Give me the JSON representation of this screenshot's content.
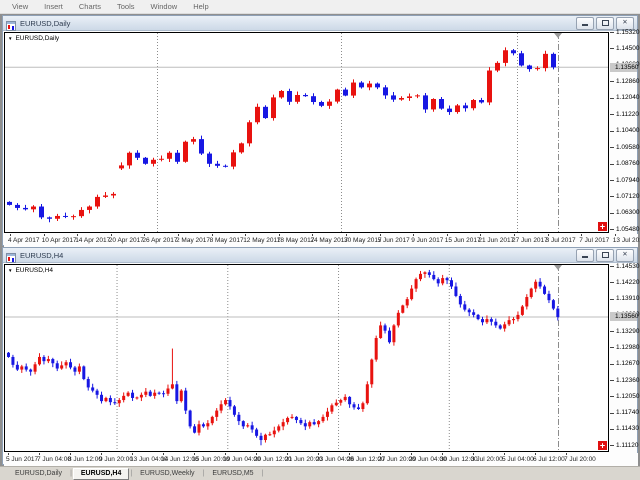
{
  "app": {
    "menu": [
      "View",
      "Insert",
      "Charts",
      "Tools",
      "Window",
      "Help"
    ]
  },
  "icons": {
    "window_icon": "candlestick-chart-icon",
    "close_glyph": "✕",
    "dropdown_glyph": "▼",
    "corner_marker_glyph": "+"
  },
  "windows": [
    {
      "title": "EURUSD,Daily",
      "symbol_label": "EURUSD,Daily"
    },
    {
      "title": "EURUSD,H4",
      "symbol_label": "EURUSD,H4"
    }
  ],
  "tabs": [
    {
      "label": "EURUSD,Daily",
      "active": false
    },
    {
      "label": "EURUSD,H4",
      "active": true
    },
    {
      "label": "EURUSD,Weekly",
      "active": false
    },
    {
      "label": "EURUSD,M5",
      "active": false
    }
  ],
  "chart_data": [
    {
      "type": "candlestick",
      "symbol": "EURUSD",
      "timeframe": "Daily",
      "title": "EURUSD,Daily",
      "background": "#ffffff",
      "bull_color": "#e8120f",
      "bear_color": "#1717e3",
      "bid": 1.1356,
      "bid_label": "1.13560",
      "ylim": [
        1.053,
        1.1532
      ],
      "open_rule": "previous_close",
      "closes": [
        1.067,
        1.0655,
        1.0648,
        1.0662,
        1.0608,
        1.0601,
        1.0615,
        1.061,
        1.0614,
        1.0645,
        1.0662,
        1.071,
        1.0717,
        1.0725,
        1.0867,
        1.093,
        1.0905,
        1.0875,
        1.0895,
        1.09,
        1.093,
        1.0885,
        1.0985,
        1.0998,
        1.0926,
        1.0875,
        1.0865,
        1.0861,
        1.0932,
        1.0977,
        1.1082,
        1.1159,
        1.1103,
        1.1206,
        1.1238,
        1.1184,
        1.1218,
        1.1212,
        1.1183,
        1.1164,
        1.1185,
        1.1245,
        1.1215,
        1.128,
        1.1256,
        1.1275,
        1.1256,
        1.1216,
        1.1195,
        1.1203,
        1.1211,
        1.1216,
        1.1146,
        1.1198,
        1.115,
        1.1133,
        1.1166,
        1.1152,
        1.1193,
        1.1181,
        1.134,
        1.1378,
        1.1441,
        1.1426,
        1.1365,
        1.1347,
        1.1352,
        1.1423,
        1.1356
      ],
      "overrides": {
        "0": {
          "open": 1.0685
        },
        "14": {
          "open": 1.0852
        }
      },
      "price_ticks": [
        "1.15320",
        "1.14500",
        "1.13680",
        "1.12860",
        "1.12040",
        "1.11220",
        "1.10400",
        "1.09580",
        "1.08760",
        "1.07940",
        "1.07120",
        "1.06300",
        "1.05480"
      ],
      "time_ticks": [
        "4 Apr 2017",
        "10 Apr 2017",
        "14 Apr 2017",
        "20 Apr 2017",
        "26 Apr 2017",
        "2 May 2017",
        "8 May 2017",
        "12 May 2017",
        "18 May 2017",
        "24 May 2017",
        "30 May 2017",
        "5 Jun 2017",
        "9 Jun 2017",
        "15 Jun 2017",
        "21 Jun 2017",
        "27 Jun 2017",
        "3 Jul 2017",
        "7 Jul 2017",
        "13 Jul 2017"
      ],
      "separator_bars": [
        19,
        42,
        64
      ],
      "grid": "period-separators-only"
    },
    {
      "type": "candlestick",
      "symbol": "EURUSD",
      "timeframe": "H4",
      "title": "EURUSD,H4",
      "background": "#ffffff",
      "bull_color": "#e8120f",
      "bear_color": "#1717e3",
      "bid": 1.1356,
      "bid_label": "1.13560",
      "ylim": [
        1.1099,
        1.1457
      ],
      "open_rule": "previous_close",
      "closes": [
        1.128,
        1.1265,
        1.1256,
        1.1262,
        1.1256,
        1.1252,
        1.1266,
        1.128,
        1.1272,
        1.1276,
        1.1268,
        1.1258,
        1.1264,
        1.127,
        1.126,
        1.1252,
        1.1262,
        1.1238,
        1.1222,
        1.1216,
        1.1208,
        1.1196,
        1.1202,
        1.1194,
        1.1192,
        1.1198,
        1.1206,
        1.1212,
        1.1202,
        1.1203,
        1.1208,
        1.1214,
        1.1206,
        1.1212,
        1.1211,
        1.121,
        1.122,
        1.1228,
        1.1196,
        1.1216,
        1.1178,
        1.1148,
        1.1136,
        1.1152,
        1.1148,
        1.1154,
        1.1166,
        1.1178,
        1.119,
        1.1198,
        1.1186,
        1.117,
        1.1158,
        1.1148,
        1.115,
        1.1142,
        1.113,
        1.1122,
        1.1132,
        1.1133,
        1.114,
        1.1148,
        1.1156,
        1.1164,
        1.1166,
        1.116,
        1.1154,
        1.1148,
        1.1156,
        1.1152,
        1.1158,
        1.1166,
        1.1176,
        1.1188,
        1.1193,
        1.1198,
        1.1204,
        1.119,
        1.1184,
        1.1181,
        1.1192,
        1.1228,
        1.1275,
        1.1316,
        1.134,
        1.133,
        1.1308,
        1.134,
        1.1364,
        1.1378,
        1.139,
        1.141,
        1.1428,
        1.1438,
        1.1441,
        1.1436,
        1.1428,
        1.142,
        1.143,
        1.1426,
        1.1414,
        1.1396,
        1.138,
        1.137,
        1.1365,
        1.136,
        1.1352,
        1.1346,
        1.1352,
        1.1347,
        1.134,
        1.1334,
        1.1342,
        1.135,
        1.1352,
        1.136,
        1.1376,
        1.1394,
        1.141,
        1.1423,
        1.1414,
        1.14,
        1.1388,
        1.1372,
        1.1356
      ],
      "overrides": {
        "0": {
          "open": 1.1288
        },
        "37": {
          "high": 1.1296
        },
        "57": {
          "low": 1.1112
        }
      },
      "price_ticks": [
        "1.14530",
        "1.14220",
        "1.13910",
        "1.13600",
        "1.13290",
        "1.12980",
        "1.12670",
        "1.12360",
        "1.12050",
        "1.11740",
        "1.11430",
        "1.11120"
      ],
      "time_ticks": [
        "5 Jun 2017",
        "7 Jun 04:00",
        "8 Jun 12:00",
        "9 Jun 20:00",
        "13 Jun 04:00",
        "14 Jun 12:00",
        "15 Jun 20:00",
        "19 Jun 04:00",
        "20 Jun 12:00",
        "21 Jun 20:00",
        "23 Jun 04:00",
        "26 Jun 12:00",
        "27 Jun 20:00",
        "29 Jun 04:00",
        "30 Jun 12:00",
        "3 Jul 20:00",
        "5 Jul 04:00",
        "6 Jul 12:00",
        "7 Jul 20:00"
      ],
      "separator_bars": [
        25,
        50,
        75,
        100
      ],
      "grid": "period-separators-only"
    }
  ]
}
